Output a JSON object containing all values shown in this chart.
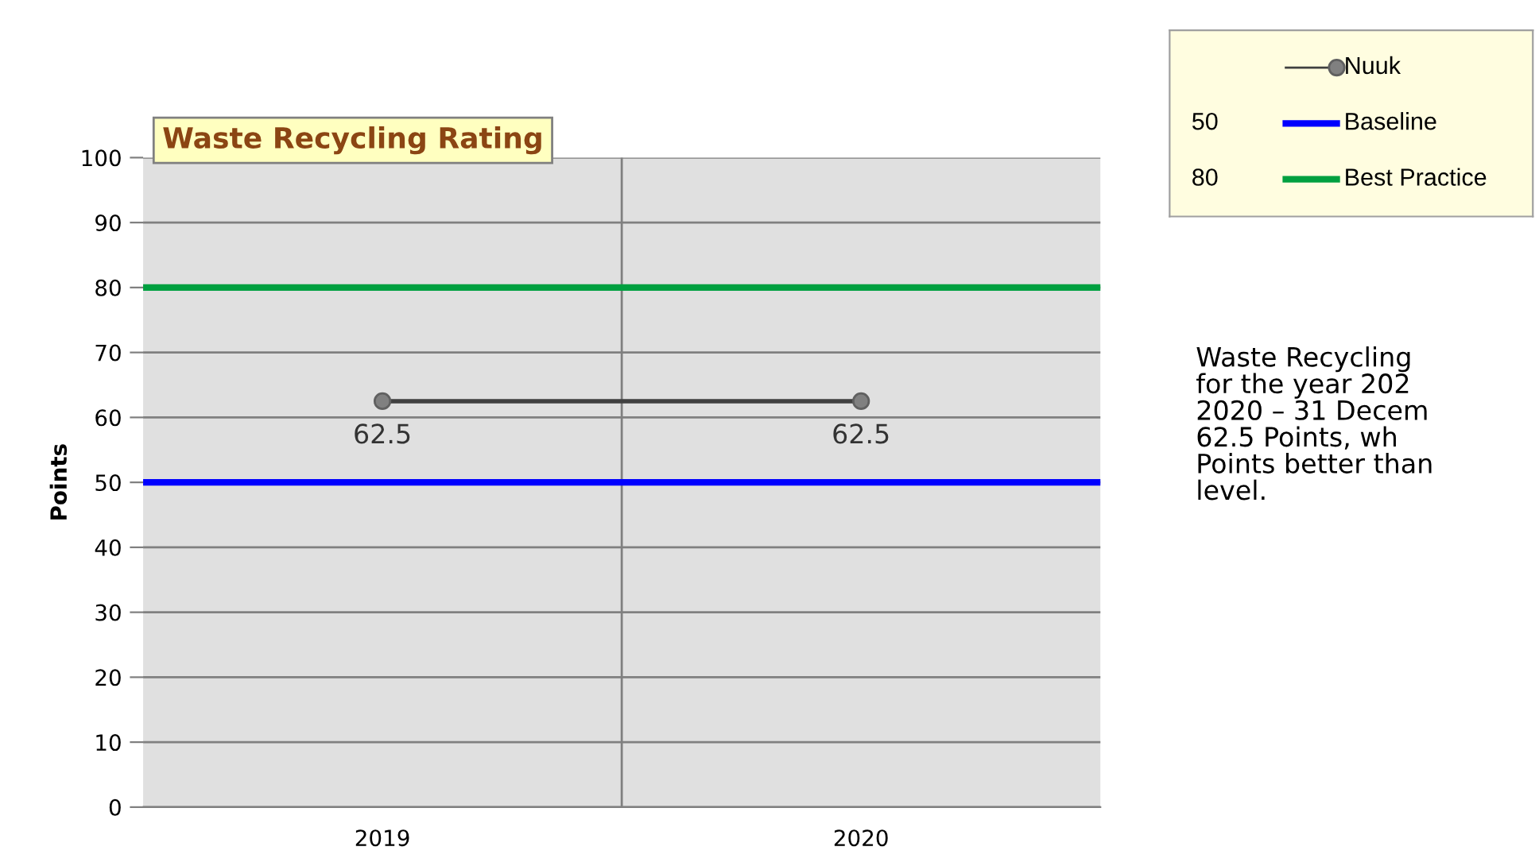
{
  "chart_data": {
    "type": "line",
    "title": "Waste Recycling Rating",
    "ylabel": "Points",
    "categories": [
      "2019",
      "2020"
    ],
    "series": [
      {
        "name": "Nuuk",
        "color": "#404040",
        "values": [
          62.5,
          62.5
        ]
      }
    ],
    "ylim": [
      0,
      100
    ],
    "yticks": [
      0,
      10,
      20,
      30,
      40,
      50,
      60,
      70,
      80,
      90,
      100
    ],
    "ref_lines": [
      {
        "axis": "y",
        "value": 50,
        "label": "Baseline",
        "color": "#0000ff"
      },
      {
        "axis": "y",
        "value": 80,
        "label": "Best Practice",
        "color": "#00a040"
      }
    ],
    "data_labels": true,
    "marker": "circle",
    "grid": true,
    "legend": "top right",
    "annotations": [
      "50",
      "80",
      "Waste Recycling\nfor the year 202\n2020 – 31 Decem\n62.5 Points, wh\nPoints better than\nlevel."
    ]
  }
}
